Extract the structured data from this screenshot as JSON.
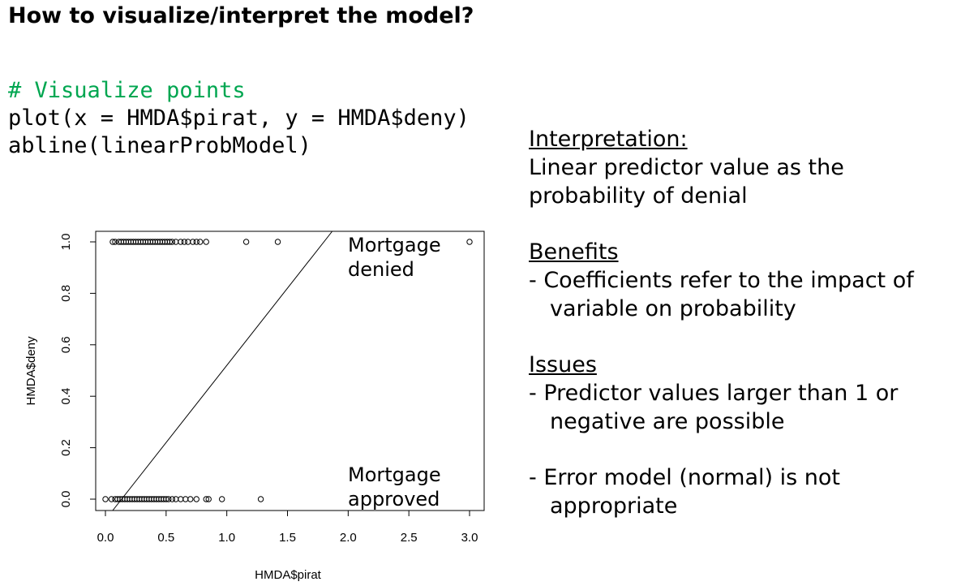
{
  "slide": {
    "title": "How to visualize/interpret the model?",
    "code_comment": "# Visualize points",
    "code_line1": "plot(x = HMDA$pirat, y = HMDA$deny)",
    "code_line2": "abline(linearProbModel)"
  },
  "interpretation": {
    "heading": "Interpretation:",
    "text_lines": [
      "Linear predictor value as the",
      "probability of denial"
    ]
  },
  "benefits": {
    "heading": "Benefits",
    "items": [
      "- Coefficients refer to the impact of variable on probability"
    ]
  },
  "issues": {
    "heading": "Issues",
    "items": [
      "- Predictor values larger than 1 or negative are possible",
      "- Error model (normal) is not appropriate"
    ]
  },
  "chart_data": {
    "type": "scatter",
    "xlabel": "HMDA$pirat",
    "ylabel": "HMDA$deny",
    "xlim": [
      0.0,
      3.0
    ],
    "ylim": [
      0.0,
      1.0
    ],
    "x_ticks": [
      "0.0",
      "0.5",
      "1.0",
      "1.5",
      "2.0",
      "2.5",
      "3.0"
    ],
    "y_ticks": [
      "0.0",
      "0.2",
      "0.4",
      "0.6",
      "0.8",
      "1.0"
    ],
    "annotations": {
      "denied": [
        "Mortgage",
        "denied"
      ],
      "approved": [
        "Mortgage",
        "approved"
      ]
    },
    "points_deny_1": [
      0.06,
      0.08,
      0.11,
      0.13,
      0.15,
      0.17,
      0.19,
      0.21,
      0.23,
      0.25,
      0.27,
      0.29,
      0.31,
      0.33,
      0.35,
      0.37,
      0.39,
      0.41,
      0.43,
      0.45,
      0.47,
      0.49,
      0.51,
      0.53,
      0.55,
      0.58,
      0.62,
      0.65,
      0.68,
      0.72,
      0.75,
      0.78,
      0.83,
      1.16,
      1.42,
      3.0
    ],
    "points_deny_0": [
      0.0,
      0.05,
      0.08,
      0.1,
      0.12,
      0.14,
      0.16,
      0.18,
      0.2,
      0.22,
      0.24,
      0.26,
      0.28,
      0.3,
      0.32,
      0.34,
      0.36,
      0.38,
      0.4,
      0.42,
      0.44,
      0.46,
      0.48,
      0.5,
      0.52,
      0.55,
      0.58,
      0.62,
      0.66,
      0.7,
      0.75,
      0.83,
      0.85,
      0.96,
      1.28
    ],
    "regression_line": {
      "intercept": -0.08,
      "slope": 0.6
    }
  }
}
